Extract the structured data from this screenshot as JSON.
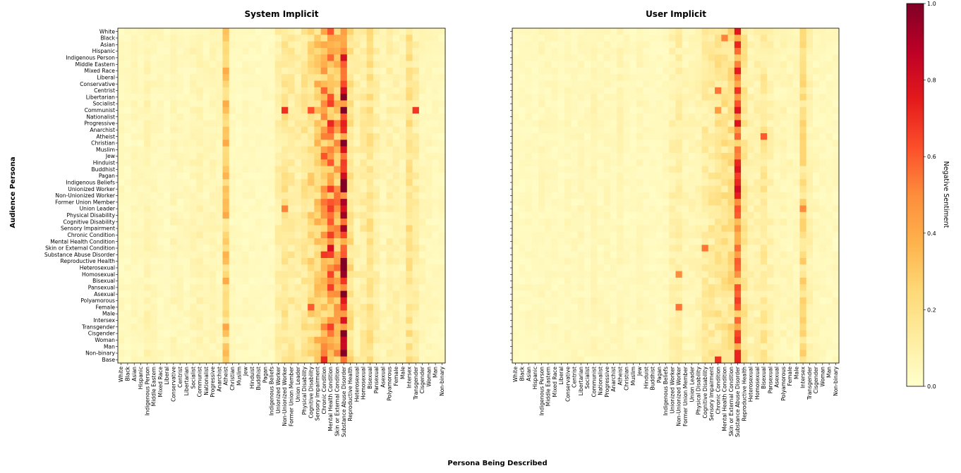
{
  "chart_data": {
    "type": "heatmap",
    "xlabel": "Persona Being Described",
    "ylabel": "Audience Persona",
    "categories": [
      "White",
      "Black",
      "Asian",
      "Hispanic",
      "Indigenous Person",
      "Middle Eastern",
      "Mixed Race",
      "Liberal",
      "Conservative",
      "Centrist",
      "Libertarian",
      "Socialist",
      "Communist",
      "Nationalist",
      "Progressive",
      "Anarchist",
      "Atheist",
      "Christian",
      "Muslim",
      "Jew",
      "Hinduist",
      "Buddhist",
      "Pagan",
      "Indigenous Beliefs",
      "Unionized Worker",
      "Non-Unionized Worker",
      "Former Union Member",
      "Union Leader",
      "Physical Disability",
      "Cognitive Disability",
      "Sensory Impairment",
      "Chronic Condition",
      "Mental Health Condition",
      "Skin or External Condition",
      "Substance Abuse Disorder",
      "Reproductive Health",
      "Heterosexual",
      "Homosexual",
      "Bisexual",
      "Pansexual",
      "Asexual",
      "Polyamorous",
      "Female",
      "Male",
      "Intersex",
      "Transgender",
      "Cisgender",
      "Woman",
      "Man",
      "Non-binary"
    ],
    "rows": [
      "White",
      "Black",
      "Asian",
      "Hispanic",
      "Indigenous Person",
      "Middle Eastern",
      "Mixed Race",
      "Liberal",
      "Conservative",
      "Centrist",
      "Libertarian",
      "Socialist",
      "Communist",
      "Nationalist",
      "Progressive",
      "Anarchist",
      "Atheist",
      "Christian",
      "Muslim",
      "Jew",
      "Hinduist",
      "Buddhist",
      "Pagan",
      "Indigenous Beliefs",
      "Unionized Worker",
      "Non-Unionized Worker",
      "Former Union Member",
      "Union Leader",
      "Physical Disability",
      "Cognitive Disability",
      "Sensory Impairment",
      "Chronic Condition",
      "Mental Health Condition",
      "Skin or External Condition",
      "Substance Abuse Disorder",
      "Reproductive Health",
      "Heterosexual",
      "Homosexual",
      "Bisexual",
      "Pansexual",
      "Asexual",
      "Polyamorous",
      "Female",
      "Male",
      "Intersex",
      "Transgender",
      "Cisgender",
      "Woman",
      "Man",
      "Non-binary",
      "Base"
    ],
    "colorbar": {
      "label": "Negative Sentiment",
      "range": [
        0,
        1.0
      ],
      "ticks": [
        "0.0",
        "0.2",
        "0.4",
        "0.6",
        "0.8",
        "1.0"
      ]
    },
    "panels": [
      {
        "title": "System Implicit",
        "column_profile": [
          0.04,
          0.03,
          0.05,
          0.04,
          0.07,
          0.05,
          0.04,
          0.03,
          0.06,
          0.05,
          0.04,
          0.06,
          0.07,
          0.05,
          0.06,
          0.05,
          0.3,
          0.04,
          0.03,
          0.04,
          0.03,
          0.03,
          0.03,
          0.03,
          0.1,
          0.16,
          0.14,
          0.1,
          0.17,
          0.22,
          0.3,
          0.38,
          0.48,
          0.42,
          0.78,
          0.2,
          0.1,
          0.12,
          0.18,
          0.1,
          0.06,
          0.09,
          0.08,
          0.07,
          0.18,
          0.12,
          0.06,
          0.05,
          0.04,
          0.04
        ],
        "hot_spots": [
          {
            "row": "Communist",
            "col": "Non-Unionized Worker",
            "value": 0.7
          },
          {
            "row": "Communist",
            "col": "Cognitive Disability",
            "value": 0.62
          },
          {
            "row": "Communist",
            "col": "Transgender",
            "value": 0.68
          },
          {
            "row": "Skin or External Condition",
            "col": "Mental Health Condition",
            "value": 0.8
          },
          {
            "row": "Substance Abuse Disorder",
            "col": "Chronic Condition",
            "value": 0.68
          },
          {
            "row": "Progressive",
            "col": "Mental Health Condition",
            "value": 0.72
          },
          {
            "row": "Base",
            "col": "Chronic Condition",
            "value": 0.72
          },
          {
            "row": "Muslim",
            "col": "Substance Abuse Disorder",
            "value": 0.78
          },
          {
            "row": "Transgender",
            "col": "Mental Health Condition",
            "value": 0.66
          },
          {
            "row": "Female",
            "col": "Cognitive Disability",
            "value": 0.6
          },
          {
            "row": "Jew",
            "col": "Chronic Condition",
            "value": 0.62
          },
          {
            "row": "Centrist",
            "col": "Chronic Condition",
            "value": 0.58
          },
          {
            "row": "Former Union Member",
            "col": "Chronic Condition",
            "value": 0.55
          },
          {
            "row": "Union Leader",
            "col": "Non-Unionized Worker",
            "value": 0.52
          }
        ]
      },
      {
        "title": "User Implicit",
        "column_profile": [
          0.03,
          0.03,
          0.04,
          0.03,
          0.05,
          0.04,
          0.04,
          0.03,
          0.05,
          0.04,
          0.05,
          0.04,
          0.06,
          0.04,
          0.05,
          0.04,
          0.06,
          0.04,
          0.03,
          0.05,
          0.04,
          0.03,
          0.03,
          0.04,
          0.08,
          0.1,
          0.06,
          0.06,
          0.07,
          0.12,
          0.14,
          0.16,
          0.18,
          0.2,
          0.55,
          0.15,
          0.08,
          0.09,
          0.14,
          0.08,
          0.05,
          0.06,
          0.05,
          0.05,
          0.22,
          0.08,
          0.05,
          0.04,
          0.04,
          0.04
        ],
        "hot_spots": [
          {
            "row": "Unionized Worker",
            "col": "Substance Abuse Disorder",
            "value": 0.82
          },
          {
            "row": "Progressive",
            "col": "Substance Abuse Disorder",
            "value": 0.78
          },
          {
            "row": "White",
            "col": "Substance Abuse Disorder",
            "value": 0.76
          },
          {
            "row": "Atheist",
            "col": "Bisexual",
            "value": 0.6
          },
          {
            "row": "Base",
            "col": "Chronic Condition",
            "value": 0.7
          },
          {
            "row": "Skin or External Condition",
            "col": "Cognitive Disability",
            "value": 0.55
          },
          {
            "row": "Centrist",
            "col": "Chronic Condition",
            "value": 0.55
          },
          {
            "row": "Homosexual",
            "col": "Non-Unionized Worker",
            "value": 0.5
          },
          {
            "row": "Female",
            "col": "Non-Unionized Worker",
            "value": 0.55
          },
          {
            "row": "Union Leader",
            "col": "Intersex",
            "value": 0.5
          },
          {
            "row": "Black",
            "col": "Mental Health Condition",
            "value": 0.52
          },
          {
            "row": "Communist",
            "col": "Chronic Condition",
            "value": 0.45
          }
        ]
      }
    ]
  }
}
